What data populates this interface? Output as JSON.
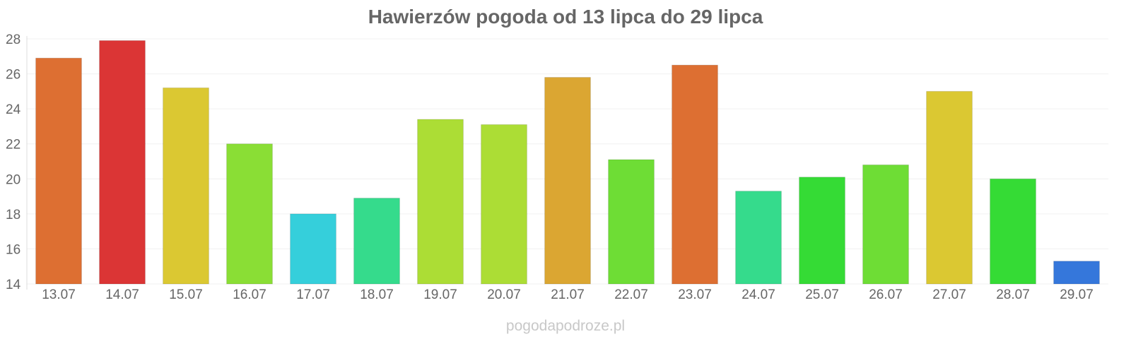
{
  "chart_data": {
    "type": "bar",
    "title": "Hawierzów pogoda od 13 lipca do 29 lipca",
    "xlabel": "",
    "ylabel": "",
    "categories": [
      "13.07",
      "14.07",
      "15.07",
      "16.07",
      "17.07",
      "18.07",
      "19.07",
      "20.07",
      "21.07",
      "22.07",
      "23.07",
      "24.07",
      "25.07",
      "26.07",
      "27.07",
      "28.07",
      "29.07"
    ],
    "values": [
      26.9,
      27.9,
      25.2,
      22.0,
      18.0,
      18.9,
      23.4,
      23.1,
      25.8,
      21.1,
      26.5,
      19.3,
      20.1,
      20.8,
      25.0,
      20.0,
      15.3
    ],
    "colors": [
      "#dd6f32",
      "#db3535",
      "#dbc832",
      "#8ade35",
      "#35cfdb",
      "#35db8c",
      "#acdd35",
      "#acdd35",
      "#dba632",
      "#6edd35",
      "#dd6f32",
      "#35db8c",
      "#35db35",
      "#6edd35",
      "#dbc832",
      "#35db35",
      "#3577db"
    ],
    "ylim": [
      14,
      28
    ],
    "yticks": [
      14,
      16,
      18,
      20,
      22,
      24,
      26,
      28
    ],
    "grid": true
  },
  "watermark": "pogodapodroze.pl"
}
